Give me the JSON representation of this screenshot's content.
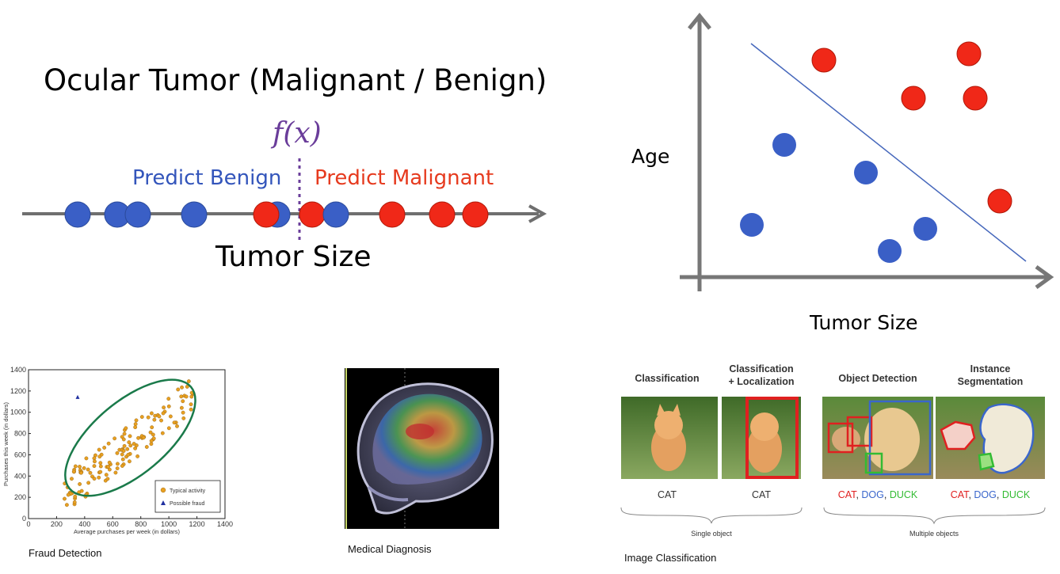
{
  "ocular": {
    "title": "Ocular Tumor (Malignant / Benign)",
    "function_label": "f(x)",
    "predict_benign": "Predict Benign",
    "predict_malignant": "Predict Malignant",
    "axis_label": "Tumor Size",
    "points": [
      {
        "x": 98,
        "cls": "benign"
      },
      {
        "x": 148,
        "cls": "benign"
      },
      {
        "x": 174,
        "cls": "benign"
      },
      {
        "x": 245,
        "cls": "benign"
      },
      {
        "x": 350,
        "cls": "benign"
      },
      {
        "x": 336,
        "cls": "malignant"
      },
      {
        "x": 394,
        "cls": "malignant"
      },
      {
        "x": 424,
        "cls": "benign"
      },
      {
        "x": 495,
        "cls": "malignant"
      },
      {
        "x": 558,
        "cls": "malignant"
      },
      {
        "x": 600,
        "cls": "malignant"
      }
    ]
  },
  "scatter2d": {
    "y_label": "Age",
    "x_label": "Tumor Size"
  },
  "fraud": {
    "caption": "Fraud Detection",
    "chart_data": {
      "type": "scatter",
      "xlabel": "Average purchases per week (in dollars)",
      "ylabel": "Purchases this week (in dollars)",
      "xlim": [
        0,
        1400
      ],
      "ylim": [
        0,
        1400
      ],
      "x_ticks": [
        "0",
        "200",
        "400",
        "600",
        "800",
        "1000",
        "1200",
        "1400"
      ],
      "y_ticks": [
        "0",
        "200",
        "400",
        "600",
        "800",
        "1000",
        "1200",
        "1400"
      ],
      "legend": [
        "Typical activity",
        "Possible fraud"
      ],
      "legend_position": "bottom-right",
      "fraud_point": {
        "x": 350,
        "y": 1140
      }
    }
  },
  "medical": {
    "caption": "Medical Diagnosis"
  },
  "image_classification": {
    "caption": "Image Classification",
    "headers": [
      "Classification",
      "Classification\n+ Localization",
      "Object Detection",
      "Instance\nSegmentation"
    ],
    "labels": [
      [
        {
          "t": "CAT",
          "c": "#333333"
        }
      ],
      [
        {
          "t": "CAT",
          "c": "#333333"
        }
      ],
      [
        {
          "t": "CAT",
          "c": "#e02020"
        },
        {
          "t": ", ",
          "c": "#333333"
        },
        {
          "t": "DOG",
          "c": "#3a66cc"
        },
        {
          "t": ", ",
          "c": "#333333"
        },
        {
          "t": "DUCK",
          "c": "#33bb33"
        }
      ],
      [
        {
          "t": "CAT",
          "c": "#e02020"
        },
        {
          "t": ", ",
          "c": "#333333"
        },
        {
          "t": "DOG",
          "c": "#3a66cc"
        },
        {
          "t": ", ",
          "c": "#333333"
        },
        {
          "t": "DUCK",
          "c": "#33bb33"
        }
      ]
    ],
    "single_object": "Single object",
    "multiple_objects": "Multiple objects"
  }
}
